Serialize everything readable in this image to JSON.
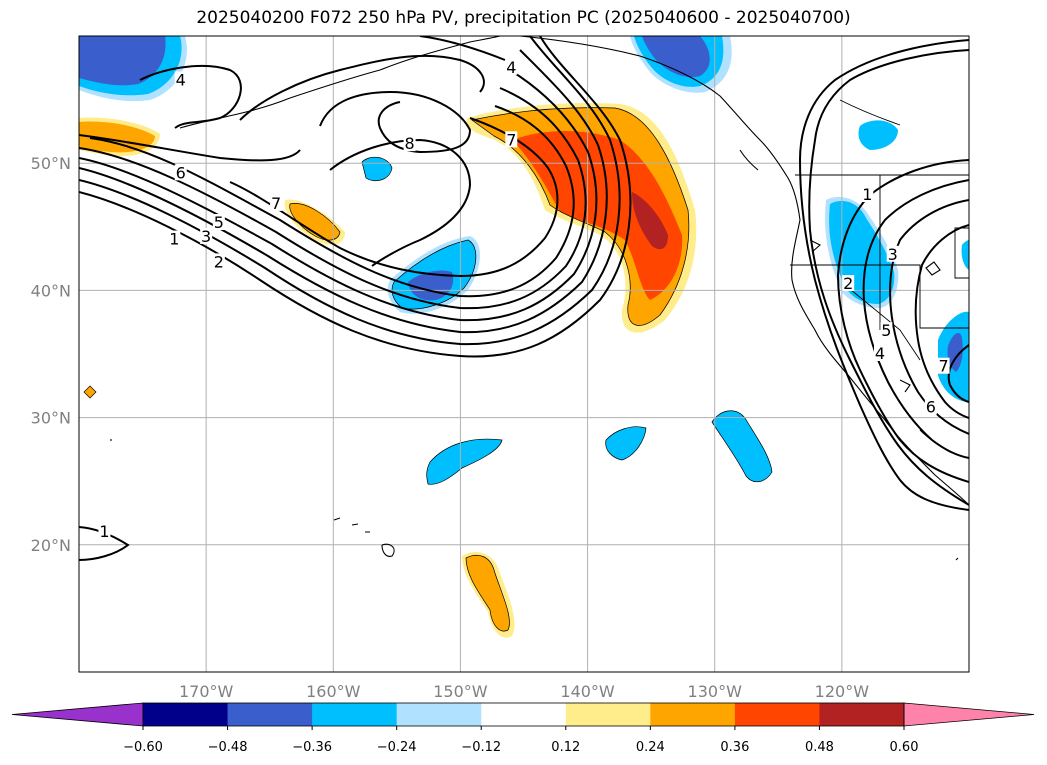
{
  "title": "2025040200 F072 250 hPa PV, precipitation PC (2025040600 - 2025040700)",
  "chart_data": {
    "type": "map-contour",
    "title": "2025040200 F072 250 hPa PV, precipitation PC (2025040600 - 2025040700)",
    "xlim": [
      -180,
      -110
    ],
    "ylim": [
      10,
      60
    ],
    "x_ticks": [
      {
        "value": -170,
        "label": "170°W"
      },
      {
        "value": -160,
        "label": "160°W"
      },
      {
        "value": -150,
        "label": "150°W"
      },
      {
        "value": -140,
        "label": "140°W"
      },
      {
        "value": -130,
        "label": "130°W"
      },
      {
        "value": -120,
        "label": "120°W"
      }
    ],
    "y_ticks": [
      {
        "value": 20,
        "label": "20°N"
      },
      {
        "value": 30,
        "label": "30°N"
      },
      {
        "value": 40,
        "label": "40°N"
      },
      {
        "value": 50,
        "label": "50°N"
      }
    ],
    "grid": true,
    "colorbar": {
      "levels": [
        -0.6,
        -0.48,
        -0.36,
        -0.24,
        -0.12,
        0.12,
        0.24,
        0.36,
        0.48,
        0.6
      ],
      "tick_labels": [
        "−0.60",
        "−0.48",
        "−0.36",
        "−0.24",
        "−0.12",
        "0.12",
        "0.24",
        "0.36",
        "0.48",
        "0.60"
      ],
      "colors": [
        "#9932cc",
        "#00008b",
        "#3a5fcd",
        "#00bfff",
        "#b0e2ff",
        "#ffffff",
        "#ffec8b",
        "#ffa500",
        "#ff4500",
        "#b22222",
        "#ff82ab"
      ],
      "extend": "both",
      "placement": "bottom"
    },
    "pv_contour_labels": [
      {
        "label": "4",
        "lon": -172,
        "lat": 56.5
      },
      {
        "label": "4",
        "lon": -146,
        "lat": 57.5
      },
      {
        "label": "8",
        "lon": -154,
        "lat": 51.5
      },
      {
        "label": "7",
        "lon": -146,
        "lat": 51.8
      },
      {
        "label": "6",
        "lon": -172,
        "lat": 49.2
      },
      {
        "label": "7",
        "lon": -164.5,
        "lat": 46.8
      },
      {
        "label": "5",
        "lon": -169,
        "lat": 45.3
      },
      {
        "label": "3",
        "lon": -170,
        "lat": 44.2
      },
      {
        "label": "1",
        "lon": -172.5,
        "lat": 44.0
      },
      {
        "label": "2",
        "lon": -169,
        "lat": 42.2
      },
      {
        "label": "1",
        "lon": -118,
        "lat": 47.5
      },
      {
        "label": "3",
        "lon": -116,
        "lat": 42.8
      },
      {
        "label": "2",
        "lon": -119.5,
        "lat": 40.5
      },
      {
        "label": "5",
        "lon": -116.5,
        "lat": 36.8
      },
      {
        "label": "4",
        "lon": -117,
        "lat": 35.0
      },
      {
        "label": "7",
        "lon": -112,
        "lat": 34.0
      },
      {
        "label": "6",
        "lon": -113,
        "lat": 30.8
      },
      {
        "label": "1",
        "lon": -178,
        "lat": 21.0
      }
    ]
  }
}
